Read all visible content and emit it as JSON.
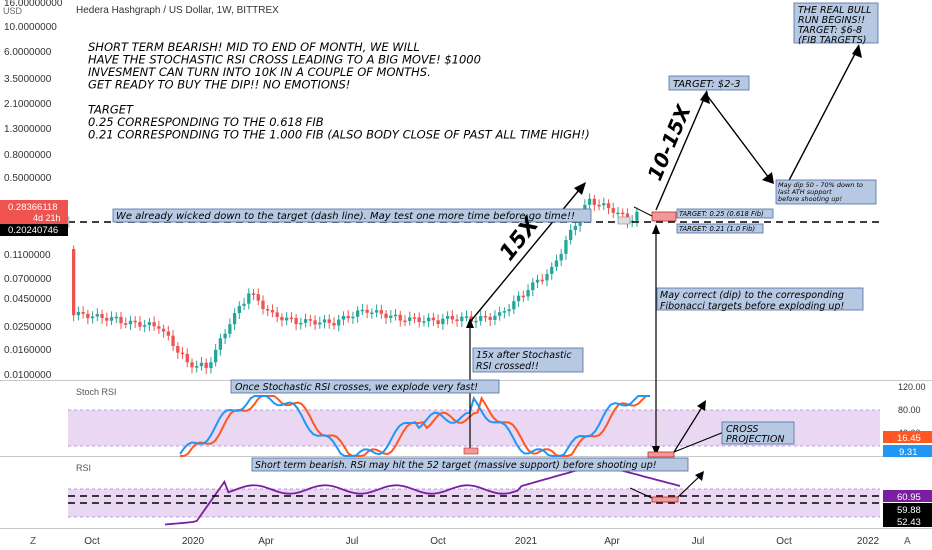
{
  "header": {
    "title": "Hedera Hashgraph / US Dollar, 1W, BITTREX",
    "currency": "USD"
  },
  "price_axis": {
    "ticks": [
      "16.00000000",
      "10.0000000",
      "6.0000000",
      "3.5000000",
      "2.1000000",
      "1.3000000",
      "0.8000000",
      "0.5000000",
      "0.2000000",
      "0.1100000",
      "0.0700000",
      "0.0450000",
      "0.0250000",
      "0.0160000",
      "0.0100000"
    ],
    "badge_price": "0.28366118",
    "badge_time": "4d 21h",
    "badge_level": "0.20240746"
  },
  "time_axis": {
    "labels": [
      "Oct",
      "2020",
      "Apr",
      "Jul",
      "Oct",
      "2021",
      "Apr",
      "Jul",
      "Oct",
      "2022"
    ]
  },
  "stoch_panel": {
    "label": "Stoch RSI",
    "ticks": [
      "120.00",
      "80.00",
      "40.00",
      "0.00"
    ],
    "badge_k": "16.45",
    "badge_d": "9.31"
  },
  "rsi_panel": {
    "label": "RSI",
    "badge_a": "60.95",
    "badge_b": "59.88",
    "badge_c": "52.43"
  },
  "annotations": {
    "main_text": [
      "SHORT TERM BEARISH! MID TO END OF MONTH, WE WILL",
      "HAVE THE STOCHASTIC RSI CROSS LEADING TO A BIG MOVE! $1000",
      "INVESMENT CAN TURN INTO 10K IN A COUPLE OF MONTHS.",
      "GET READY TO BUY THE DIP!! NO EMOTIONS!",
      "",
      "TARGET",
      "0.25 CORRESPONDING TO THE 0.618 FIB",
      "0.21 CORRESPONDING TO THE 1.000 FIB (ALSO BODY CLOSE OF PAST ALL TIME HIGH!)"
    ],
    "wicked_note": "We already wicked down to the target (dash line). May test one more time before go time!!",
    "label_15x": "15X",
    "label_10_15x": "10-15X",
    "target_2_3": "TARGET: $2-3",
    "bull_run": [
      "THE REAL BULL",
      "RUN BEGINS!!",
      "TARGET: $6-8",
      "(FIB TARGETS)"
    ],
    "dip_note": [
      "May dip 50 - 70% down to",
      "last ATH support",
      "before shooting up!"
    ],
    "target_fib_1": "TARGET: 0.25 (0.618 Fib)",
    "target_fib_2": "TARGET: 0.21 (1.0 Fib)",
    "correct_note": [
      "May correct (dip) to the corresponding",
      "Fibonacci targets before exploding up!"
    ],
    "stoch_note": [
      "15x after Stochastic",
      "RSI crossed!!"
    ],
    "stoch_panel_note": "Once Stochastic RSI crosses, we explode very fast!",
    "cross_projection": [
      "CROSS",
      "PROJECTION"
    ],
    "rsi_note": "Short term bearish. RSI may hit the 52 target (massive support) before shooting up!"
  },
  "colors": {
    "up": "#26a69a",
    "down": "#ef5350",
    "stoch_k": "#2196f3",
    "stoch_d": "#ff5722",
    "rsi": "#7b1fa2",
    "band": "#e1bee7",
    "note_bg": "#b7c9e2"
  },
  "chart_data": {
    "type": "candlestick",
    "interval": "1W",
    "y_scale": "log",
    "price_series_approx": [
      {
        "date": "2019-09",
        "open": 0.14,
        "high": 0.14,
        "low": 0.04,
        "close": 0.04
      },
      {
        "date": "2019-10",
        "open": 0.035,
        "high": 0.04,
        "low": 0.028,
        "close": 0.033
      },
      {
        "date": "2019-11",
        "open": 0.032,
        "high": 0.035,
        "low": 0.027,
        "close": 0.03
      },
      {
        "date": "2019-12",
        "open": 0.02,
        "high": 0.022,
        "low": 0.01,
        "close": 0.012
      },
      {
        "date": "2020-01",
        "open": 0.012,
        "high": 0.02,
        "low": 0.011,
        "close": 0.019
      },
      {
        "date": "2020-02",
        "open": 0.025,
        "high": 0.06,
        "low": 0.024,
        "close": 0.055
      },
      {
        "date": "2020-03",
        "open": 0.05,
        "high": 0.06,
        "low": 0.025,
        "close": 0.035
      },
      {
        "date": "2020-05",
        "open": 0.03,
        "high": 0.033,
        "low": 0.027,
        "close": 0.029
      },
      {
        "date": "2020-07",
        "open": 0.03,
        "high": 0.05,
        "low": 0.028,
        "close": 0.04
      },
      {
        "date": "2020-09",
        "open": 0.04,
        "high": 0.045,
        "low": 0.028,
        "close": 0.032
      },
      {
        "date": "2020-11",
        "open": 0.03,
        "high": 0.034,
        "low": 0.028,
        "close": 0.03
      },
      {
        "date": "2020-12",
        "open": 0.03,
        "high": 0.04,
        "low": 0.029,
        "close": 0.035
      },
      {
        "date": "2021-01",
        "open": 0.035,
        "high": 0.06,
        "low": 0.034,
        "close": 0.055
      },
      {
        "date": "2021-02",
        "open": 0.06,
        "high": 0.12,
        "low": 0.055,
        "close": 0.1
      },
      {
        "date": "2021-03",
        "open": 0.15,
        "high": 0.45,
        "low": 0.14,
        "close": 0.4
      },
      {
        "date": "2021-04",
        "open": 0.35,
        "high": 0.42,
        "low": 0.28,
        "close": 0.33
      },
      {
        "date": "2021-05",
        "open": 0.33,
        "high": 0.35,
        "low": 0.2,
        "close": 0.284
      }
    ],
    "levels": [
      {
        "name": "0.618 Fib",
        "value": 0.25
      },
      {
        "name": "1.0 Fib",
        "value": 0.21
      }
    ],
    "stoch_rsi": {
      "k_last": 16.45,
      "d_last": 9.31,
      "band": [
        20,
        80
      ]
    },
    "rsi": {
      "last": 60.95,
      "levels": [
        59.88,
        52.43
      ]
    },
    "projection": [
      {
        "date": "2021-05",
        "value": 0.21
      },
      {
        "date": "2021-06",
        "value": 2.5
      },
      {
        "date": "2021-08",
        "value": 0.55
      },
      {
        "date": "2021-12",
        "value": 7
      }
    ]
  }
}
